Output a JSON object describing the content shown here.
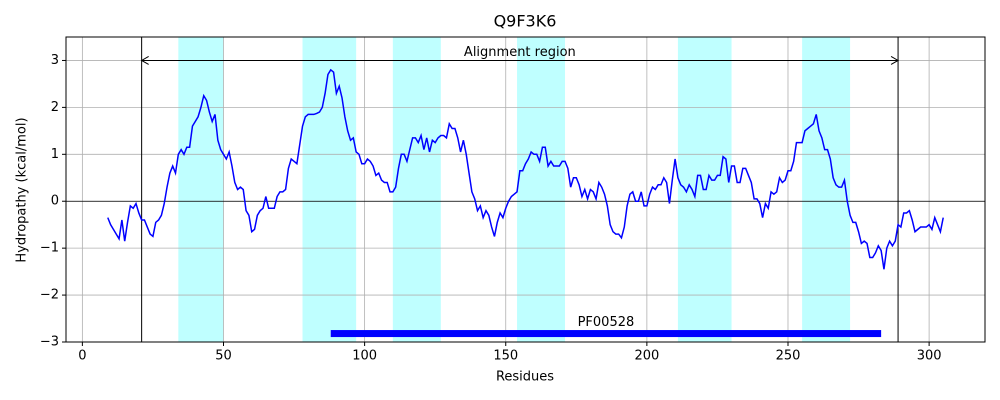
{
  "chart_data": {
    "type": "line",
    "title": "Q9F3K6",
    "xlabel": "Residues",
    "ylabel": "Hydropathy (kcal/mol)",
    "color": "#0000ff",
    "grid": true,
    "xlim": [
      -5.8,
      319.8
    ],
    "ylim": [
      -3,
      3.5
    ],
    "xticks": [
      0,
      50,
      100,
      150,
      200,
      250,
      300
    ],
    "yticks": [
      {
        "value": -3,
        "label": "−3"
      },
      {
        "value": -2,
        "label": "−2"
      },
      {
        "value": -1,
        "label": "−1"
      },
      0,
      1,
      2,
      3
    ],
    "highlight_spans": [
      [
        34,
        50
      ],
      [
        78,
        97
      ],
      [
        110,
        127
      ],
      [
        154,
        171
      ],
      [
        211,
        230
      ],
      [
        255,
        272
      ]
    ],
    "highlight_color": "#00ffff",
    "hline": 0,
    "alignment_region": {
      "label": "Alignment region",
      "start": 21,
      "end": 289,
      "y": 3
    },
    "domain": {
      "label": "PF00528",
      "start": 88,
      "end": 283,
      "y": -2.82
    },
    "x": [
      9,
      10,
      11,
      12,
      13,
      14,
      15,
      16,
      17,
      18,
      19,
      20,
      21,
      22,
      23,
      24,
      25,
      26,
      27,
      28,
      29,
      30,
      31,
      32,
      33,
      34,
      35,
      36,
      37,
      38,
      39,
      40,
      41,
      42,
      43,
      44,
      45,
      46,
      47,
      48,
      49,
      50,
      51,
      52,
      53,
      54,
      55,
      56,
      57,
      58,
      59,
      60,
      61,
      62,
      63,
      64,
      65,
      66,
      67,
      68,
      69,
      70,
      71,
      72,
      73,
      74,
      75,
      76,
      77,
      78,
      79,
      80,
      81,
      82,
      83,
      84,
      85,
      86,
      87,
      88,
      89,
      90,
      91,
      92,
      93,
      94,
      95,
      96,
      97,
      98,
      99,
      100,
      101,
      102,
      103,
      104,
      105,
      106,
      107,
      108,
      109,
      110,
      111,
      112,
      113,
      114,
      115,
      116,
      117,
      118,
      119,
      120,
      121,
      122,
      123,
      124,
      125,
      126,
      127,
      128,
      129,
      130,
      131,
      132,
      133,
      134,
      135,
      136,
      137,
      138,
      139,
      140,
      141,
      142,
      143,
      144,
      145,
      146,
      147,
      148,
      149,
      150,
      151,
      152,
      153,
      154,
      155,
      156,
      157,
      158,
      159,
      160,
      161,
      162,
      163,
      164,
      165,
      166,
      167,
      168,
      169,
      170,
      171,
      172,
      173,
      174,
      175,
      176,
      177,
      178,
      179,
      180,
      181,
      182,
      183,
      184,
      185,
      186,
      187,
      188,
      189,
      190,
      191,
      192,
      193,
      194,
      195,
      196,
      197,
      198,
      199,
      200,
      201,
      202,
      203,
      204,
      205,
      206,
      207,
      208,
      209,
      210,
      211,
      212,
      213,
      214,
      215,
      216,
      217,
      218,
      219,
      220,
      221,
      222,
      223,
      224,
      225,
      226,
      227,
      228,
      229,
      230,
      231,
      232,
      233,
      234,
      235,
      236,
      237,
      238,
      239,
      240,
      241,
      242,
      243,
      244,
      245,
      246,
      247,
      248,
      249,
      250,
      251,
      252,
      253,
      254,
      255,
      256,
      257,
      258,
      259,
      260,
      261,
      262,
      263,
      264,
      265,
      266,
      267,
      268,
      269,
      270,
      271,
      272,
      273,
      274,
      275,
      276,
      277,
      278,
      279,
      280,
      281,
      282,
      283,
      284,
      285,
      286,
      287,
      288,
      289,
      290,
      291,
      292,
      293,
      294,
      295,
      296,
      297,
      298,
      299,
      300,
      301,
      302,
      303,
      304,
      305
    ],
    "values": [
      -0.35,
      -0.5,
      -0.6,
      -0.7,
      -0.8,
      -0.4,
      -0.85,
      -0.45,
      -0.1,
      -0.15,
      -0.05,
      -0.25,
      -0.4,
      -0.4,
      -0.55,
      -0.7,
      -0.75,
      -0.45,
      -0.4,
      -0.3,
      -0.05,
      0.3,
      0.6,
      0.75,
      0.6,
      1.0,
      1.1,
      1.0,
      1.15,
      1.15,
      1.6,
      1.7,
      1.8,
      2.0,
      2.25,
      2.15,
      1.9,
      1.7,
      1.85,
      1.3,
      1.1,
      1.0,
      0.9,
      1.05,
      0.75,
      0.4,
      0.25,
      0.3,
      0.25,
      -0.2,
      -0.3,
      -0.65,
      -0.6,
      -0.3,
      -0.2,
      -0.15,
      0.1,
      -0.15,
      -0.15,
      -0.15,
      0.1,
      0.2,
      0.2,
      0.25,
      0.7,
      0.9,
      0.85,
      0.8,
      1.2,
      1.6,
      1.8,
      1.85,
      1.85,
      1.85,
      1.87,
      1.9,
      2.0,
      2.3,
      2.7,
      2.8,
      2.75,
      2.3,
      2.45,
      2.2,
      1.8,
      1.5,
      1.3,
      1.35,
      1.05,
      1.0,
      0.8,
      0.8,
      0.9,
      0.85,
      0.75,
      0.55,
      0.6,
      0.45,
      0.4,
      0.4,
      0.2,
      0.2,
      0.3,
      0.7,
      1.0,
      1.0,
      0.85,
      1.1,
      1.35,
      1.35,
      1.25,
      1.4,
      1.1,
      1.35,
      1.05,
      1.3,
      1.25,
      1.35,
      1.4,
      1.4,
      1.35,
      1.65,
      1.55,
      1.55,
      1.35,
      1.05,
      1.3,
      1.0,
      0.6,
      0.2,
      0.05,
      -0.2,
      -0.1,
      -0.35,
      -0.2,
      -0.3,
      -0.55,
      -0.75,
      -0.45,
      -0.25,
      -0.35,
      -0.15,
      0.0,
      0.1,
      0.15,
      0.2,
      0.65,
      0.65,
      0.8,
      0.9,
      1.05,
      1.0,
      1.0,
      0.85,
      1.15,
      1.15,
      0.75,
      0.85,
      0.75,
      0.75,
      0.75,
      0.85,
      0.85,
      0.7,
      0.3,
      0.5,
      0.5,
      0.35,
      0.1,
      0.25,
      0.05,
      0.25,
      0.2,
      0.05,
      0.4,
      0.3,
      0.15,
      -0.1,
      -0.5,
      -0.65,
      -0.7,
      -0.7,
      -0.78,
      -0.55,
      -0.1,
      0.15,
      0.2,
      0.0,
      0.0,
      0.2,
      -0.1,
      -0.1,
      0.15,
      0.3,
      0.25,
      0.35,
      0.35,
      0.5,
      0.4,
      -0.05,
      0.45,
      0.9,
      0.5,
      0.35,
      0.3,
      0.2,
      0.35,
      0.25,
      0.1,
      0.55,
      0.55,
      0.25,
      0.25,
      0.55,
      0.45,
      0.45,
      0.55,
      0.55,
      0.95,
      0.9,
      0.4,
      0.75,
      0.75,
      0.4,
      0.4,
      0.7,
      0.7,
      0.55,
      0.4,
      0.05,
      0.05,
      -0.05,
      -0.35,
      -0.05,
      -0.15,
      0.2,
      0.15,
      0.2,
      0.5,
      0.4,
      0.45,
      0.65,
      0.65,
      0.85,
      1.25,
      1.25,
      1.25,
      1.5,
      1.55,
      1.6,
      1.65,
      1.85,
      1.5,
      1.35,
      1.1,
      1.1,
      0.9,
      0.5,
      0.35,
      0.3,
      0.3,
      0.45,
      0.0,
      -0.3,
      -0.45,
      -0.45,
      -0.65,
      -0.9,
      -0.85,
      -0.9,
      -1.2,
      -1.2,
      -1.1,
      -0.95,
      -1.05,
      -1.45,
      -1.0,
      -0.85,
      -0.95,
      -0.85,
      -0.5,
      -0.55,
      -0.25,
      -0.25,
      -0.2,
      -0.4,
      -0.65,
      -0.6,
      -0.55,
      -0.55,
      -0.55,
      -0.5,
      -0.6,
      -0.35,
      -0.5,
      -0.65,
      -0.35
    ]
  }
}
